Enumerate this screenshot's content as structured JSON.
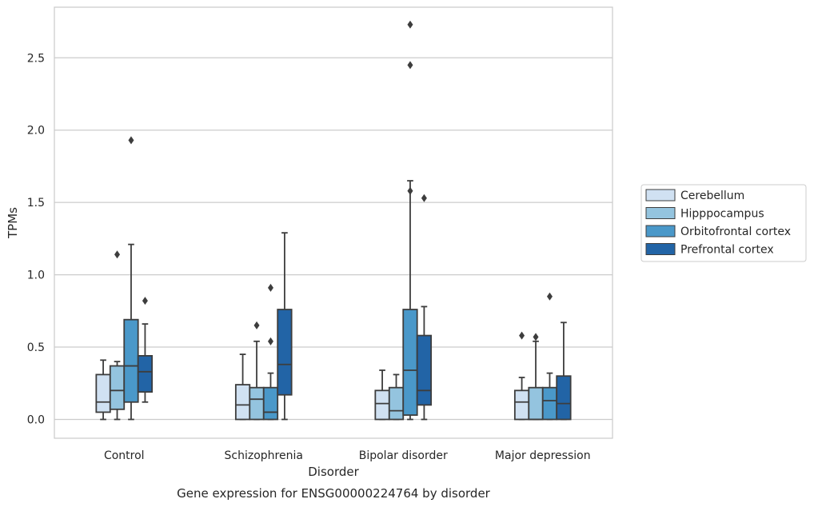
{
  "chart_data": {
    "type": "box",
    "caption": "Gene expression for ENSG00000224764 by disorder",
    "xlabel": "Disorder",
    "ylabel": "TPMs",
    "ylim": [
      -0.13,
      2.85
    ],
    "yticks": [
      "0.0",
      "0.5",
      "1.0",
      "1.5",
      "2.0",
      "2.5"
    ],
    "grid": "horizontal",
    "legend_position": "right",
    "categories": [
      "Control",
      "Schizophrenia",
      "Bipolar disorder",
      "Major depression"
    ],
    "series": [
      {
        "name": "Cerebellum",
        "color": "#d0e1f2",
        "boxes": [
          {
            "min": 0.0,
            "q1": 0.05,
            "median": 0.12,
            "q3": 0.31,
            "max": 0.41,
            "outliers": []
          },
          {
            "min": 0.0,
            "q1": 0.0,
            "median": 0.1,
            "q3": 0.24,
            "max": 0.45,
            "outliers": []
          },
          {
            "min": 0.0,
            "q1": 0.0,
            "median": 0.11,
            "q3": 0.2,
            "max": 0.34,
            "outliers": []
          },
          {
            "min": 0.0,
            "q1": 0.0,
            "median": 0.12,
            "q3": 0.2,
            "max": 0.29,
            "outliers": [
              0.58
            ]
          }
        ]
      },
      {
        "name": "Hipppocampus",
        "color": "#94c4df",
        "boxes": [
          {
            "min": 0.0,
            "q1": 0.07,
            "median": 0.2,
            "q3": 0.37,
            "max": 0.4,
            "outliers": [
              1.14
            ]
          },
          {
            "min": 0.0,
            "q1": 0.0,
            "median": 0.14,
            "q3": 0.22,
            "max": 0.54,
            "outliers": [
              0.65
            ]
          },
          {
            "min": 0.0,
            "q1": 0.0,
            "median": 0.06,
            "q3": 0.22,
            "max": 0.31,
            "outliers": []
          },
          {
            "min": 0.0,
            "q1": 0.0,
            "median": 0.0,
            "q3": 0.22,
            "max": 0.54,
            "outliers": [
              0.57
            ]
          }
        ]
      },
      {
        "name": "Orbitofrontal cortex",
        "color": "#4a98c9",
        "boxes": [
          {
            "min": 0.0,
            "q1": 0.12,
            "median": 0.37,
            "q3": 0.69,
            "max": 1.21,
            "outliers": [
              1.93
            ]
          },
          {
            "min": 0.0,
            "q1": 0.0,
            "median": 0.05,
            "q3": 0.22,
            "max": 0.32,
            "outliers": [
              0.54,
              0.91
            ]
          },
          {
            "min": 0.0,
            "q1": 0.03,
            "median": 0.34,
            "q3": 0.76,
            "max": 1.65,
            "outliers": [
              1.58,
              2.45,
              2.73
            ]
          },
          {
            "min": 0.0,
            "q1": 0.0,
            "median": 0.13,
            "q3": 0.22,
            "max": 0.32,
            "outliers": [
              0.85
            ]
          }
        ]
      },
      {
        "name": "Prefrontal cortex",
        "color": "#2264a6",
        "boxes": [
          {
            "min": 0.12,
            "q1": 0.19,
            "median": 0.33,
            "q3": 0.44,
            "max": 0.66,
            "outliers": [
              0.82
            ]
          },
          {
            "min": 0.0,
            "q1": 0.17,
            "median": 0.38,
            "q3": 0.76,
            "max": 1.29,
            "outliers": []
          },
          {
            "min": 0.0,
            "q1": 0.1,
            "median": 0.2,
            "q3": 0.58,
            "max": 0.78,
            "outliers": [
              1.53
            ]
          },
          {
            "min": 0.0,
            "q1": 0.0,
            "median": 0.11,
            "q3": 0.3,
            "max": 0.67,
            "outliers": []
          }
        ]
      }
    ]
  }
}
